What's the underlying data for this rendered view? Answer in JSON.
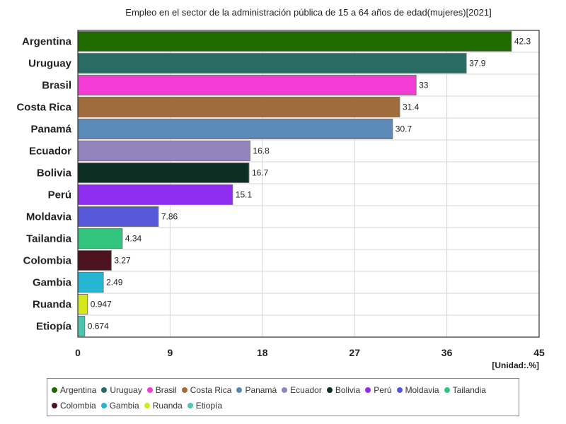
{
  "chart_data": {
    "type": "bar",
    "orientation": "horizontal",
    "title": "Empleo en el sector de la administración pública de 15 a 64 años de edad(mujeres)[2021]",
    "unit_label": "[Unidad:.%]",
    "xlim": [
      0,
      45
    ],
    "xticks": [
      0,
      9,
      18,
      27,
      36,
      45
    ],
    "grid": true,
    "legend_position": "bottom",
    "categories": [
      "Argentina",
      "Uruguay",
      "Brasil",
      "Costa Rica",
      "Panamá",
      "Ecuador",
      "Bolivia",
      "Perú",
      "Moldavia",
      "Tailandia",
      "Colombia",
      "Gambia",
      "Ruanda",
      "Etiopía"
    ],
    "values": [
      42.3,
      37.9,
      33,
      31.4,
      30.7,
      16.8,
      16.7,
      15.1,
      7.86,
      4.34,
      3.27,
      2.49,
      0.947,
      0.674
    ],
    "value_labels": [
      "42.3",
      "37.9",
      "33",
      "31.4",
      "30.7",
      "16.8",
      "16.7",
      "15.1",
      "7.86",
      "4.34",
      "3.27",
      "2.49",
      "0.947",
      "0.674"
    ],
    "colors": [
      "#1e6b00",
      "#2a6b63",
      "#f23cd4",
      "#a06c3c",
      "#5b8ab8",
      "#9484be",
      "#0d2e22",
      "#8e2cf0",
      "#5558d8",
      "#33c57e",
      "#4d1420",
      "#25b6d4",
      "#d5e81c",
      "#4fc5b1"
    ]
  }
}
